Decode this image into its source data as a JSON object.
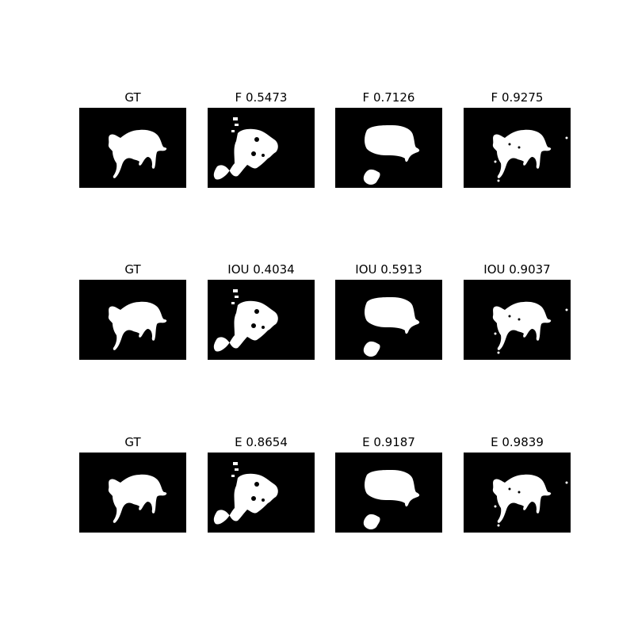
{
  "colors": {
    "background": "#000000",
    "foreground": "#ffffff"
  },
  "rows": [
    {
      "panels": [
        {
          "title": "GT",
          "mask": "gt"
        },
        {
          "title": "F 0.5473",
          "mask": "pred1"
        },
        {
          "title": "F 0.7126",
          "mask": "pred2"
        },
        {
          "title": "F 0.9275",
          "mask": "pred3"
        }
      ]
    },
    {
      "panels": [
        {
          "title": "GT",
          "mask": "gt"
        },
        {
          "title": "IOU 0.4034",
          "mask": "pred1"
        },
        {
          "title": "IOU 0.5913",
          "mask": "pred2"
        },
        {
          "title": "IOU 0.9037",
          "mask": "pred3"
        }
      ]
    },
    {
      "panels": [
        {
          "title": "GT",
          "mask": "gt"
        },
        {
          "title": "E 0.8654",
          "mask": "pred1"
        },
        {
          "title": "E 0.9187",
          "mask": "pred2"
        },
        {
          "title": "E 0.9839",
          "mask": "pred3"
        }
      ]
    }
  ]
}
